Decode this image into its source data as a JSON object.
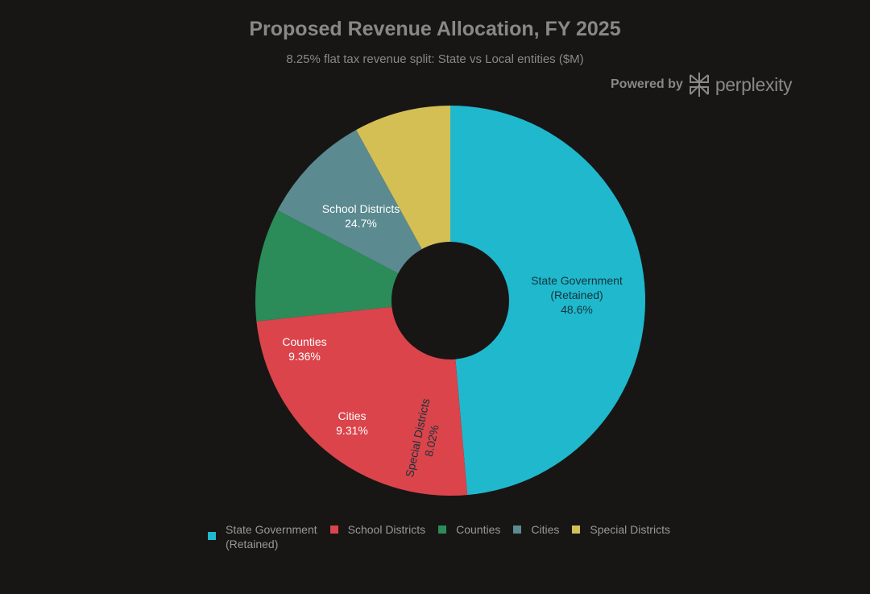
{
  "header": {
    "title": "Proposed Revenue Allocation, FY 2025",
    "subtitle": "8.25% flat tax revenue split: State vs Local entities ($M)"
  },
  "brand": {
    "prefix": "Powered by",
    "name": "perplexity",
    "icon": "perplexity-logo-icon"
  },
  "colors": {
    "background": "#171615",
    "text_muted": "#8a8886"
  },
  "chart_data": {
    "type": "pie",
    "hole": true,
    "categories": [
      "State Government (Retained)",
      "School Districts",
      "Counties",
      "Cities",
      "Special Districts"
    ],
    "values": [
      48.6,
      24.7,
      9.36,
      9.31,
      8.02
    ],
    "value_unit": "%",
    "slice_labels": [
      {
        "lines": [
          "State Government",
          "(Retained)",
          "48.6%"
        ],
        "color": "#13343b"
      },
      {
        "lines": [
          "School Districts",
          "24.7%"
        ],
        "color": "#ffffff"
      },
      {
        "lines": [
          "Counties",
          "9.36%"
        ],
        "color": "#ffffff"
      },
      {
        "lines": [
          "Cities",
          "9.31%"
        ],
        "color": "#ffffff"
      },
      {
        "lines": [
          "Special Districts",
          "8.02%"
        ],
        "color": "#13343b"
      }
    ],
    "colors": [
      "#20b8cd",
      "#db444b",
      "#2b8c5a",
      "#5b8a90",
      "#d4bf55"
    ],
    "legend": {
      "placement": "bottom",
      "items": [
        {
          "label": "State Government\n(Retained)",
          "color": "#20b8cd"
        },
        {
          "label": "School Districts",
          "color": "#db444b"
        },
        {
          "label": "Counties",
          "color": "#2b8c5a"
        },
        {
          "label": "Cities",
          "color": "#5b8a90"
        },
        {
          "label": "Special Districts",
          "color": "#d4bf55"
        }
      ]
    }
  }
}
